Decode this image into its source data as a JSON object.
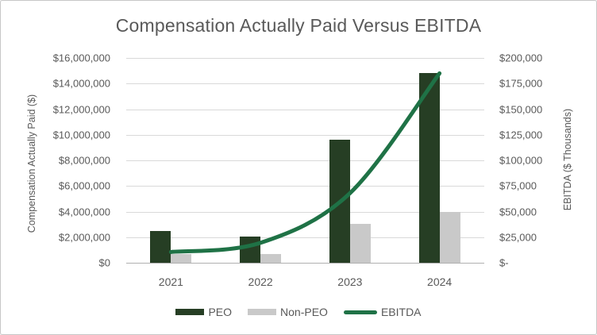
{
  "chart_data": {
    "type": "combo-bar-line",
    "title": "Compensation Actually Paid Versus EBITDA",
    "categories": [
      "2021",
      "2022",
      "2023",
      "2024"
    ],
    "series": [
      {
        "name": "PEO",
        "type": "bar",
        "axis": "left",
        "color": "#263e24",
        "values": [
          2500000,
          2050000,
          9600000,
          14800000
        ]
      },
      {
        "name": "Non-PEO",
        "type": "bar",
        "axis": "left",
        "color": "#c9c9c9",
        "values": [
          700000,
          700000,
          3050000,
          3950000
        ]
      },
      {
        "name": "EBITDA",
        "type": "line",
        "axis": "right",
        "color": "#1f7246",
        "values": [
          10500,
          19500,
          68000,
          185000
        ],
        "smooth": true
      }
    ],
    "left_axis": {
      "title": "Compensation Actually Paid ($)",
      "min": 0,
      "max": 16000000,
      "tick_labels_top_to_bottom": [
        "$16,000,000",
        "$14,000,000",
        "$12,000,000",
        "$10,000,000",
        "$8,000,000",
        "$6,000,000",
        "$4,000,000",
        "$2,000,000",
        "$0"
      ]
    },
    "right_axis": {
      "title": "EBITDA ($ Thousands)",
      "min": 0,
      "max": 200000,
      "tick_labels_top_to_bottom": [
        "$200,000",
        "$175,000",
        "$150,000",
        "$125,000",
        "$100,000",
        "$75,000",
        "$50,000",
        "$25,000",
        "$-"
      ]
    },
    "grid": true,
    "legend_position": "bottom"
  },
  "colors": {
    "text": "#595959",
    "gridline": "#d9d9d9",
    "axis_line": "#b0b0b0",
    "border": "#c7c7c7",
    "background": "#ffffff"
  }
}
